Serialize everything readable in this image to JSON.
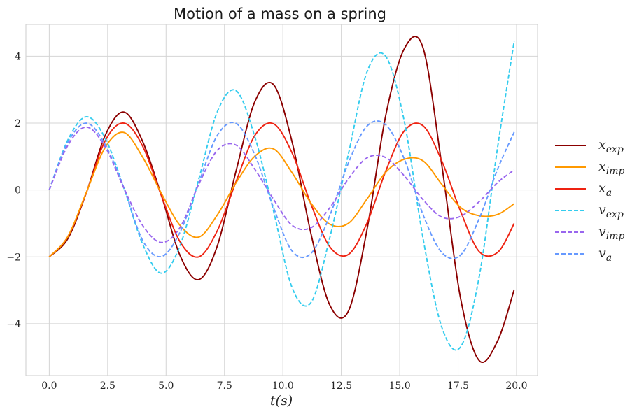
{
  "chart_data": {
    "type": "line",
    "title": "Motion of a mass on a spring",
    "xlabel": "t(s)",
    "ylabel": "",
    "xlim": [
      -1.0,
      20.9
    ],
    "ylim": [
      -5.55,
      4.95
    ],
    "grid": true,
    "legend_position": "right",
    "x_ticks": [
      0,
      2.5,
      5,
      7.5,
      10,
      12.5,
      15,
      17.5,
      20
    ],
    "x_tick_labels": [
      "0.0",
      "2.5",
      "5.0",
      "7.5",
      "10.0",
      "12.5",
      "15.0",
      "17.5",
      "20.0"
    ],
    "y_ticks": [
      4,
      2,
      0,
      -2,
      -4
    ],
    "y_tick_labels": [
      "4",
      "2",
      "0",
      "−2",
      "−4"
    ],
    "x": [
      0,
      0.8,
      1.6,
      2.4,
      3.2,
      4.0,
      4.8,
      5.6,
      6.4,
      7.2,
      8.0,
      8.8,
      9.6,
      10.4,
      11.2,
      12.0,
      12.8,
      13.6,
      14.4,
      15.2,
      16.0,
      16.8,
      17.6,
      18.4,
      19.2,
      19.9
    ],
    "series": [
      {
        "name": "x_exp",
        "label_main": "x",
        "label_sub": "exp",
        "color": "#8b0000",
        "dash": "solid",
        "values": [
          -2.0,
          -1.45,
          -0.06,
          1.64,
          2.33,
          1.45,
          -0.16,
          -1.96,
          -2.68,
          -1.66,
          0.58,
          2.64,
          3.15,
          1.42,
          -1.3,
          -3.43,
          -3.63,
          -1.19,
          2.22,
          4.23,
          4.25,
          0.75,
          -3.22,
          -5.1,
          -4.5,
          -2.98
        ]
      },
      {
        "name": "x_imp",
        "label_main": "x",
        "label_sub": "imp",
        "color": "#ff9900",
        "dash": "solid",
        "values": [
          -2.0,
          -1.39,
          -0.05,
          1.28,
          1.72,
          0.98,
          -0.1,
          -1.06,
          -1.41,
          -0.74,
          0.22,
          1.01,
          1.23,
          0.51,
          -0.39,
          -1.02,
          -1.0,
          -0.27,
          0.53,
          0.92,
          0.87,
          0.17,
          -0.52,
          -0.77,
          -0.73,
          -0.41
        ]
      },
      {
        "name": "x_a",
        "label_main": "x",
        "label_sub": "a",
        "color": "#ee2211",
        "dash": "solid",
        "values": [
          -2.0,
          -1.39,
          -0.06,
          1.48,
          2.0,
          1.31,
          -0.17,
          -1.55,
          -2.0,
          -1.21,
          0.26,
          1.63,
          1.98,
          1.1,
          -0.42,
          -1.69,
          -1.93,
          -0.99,
          0.56,
          1.77,
          1.92,
          0.87,
          -0.63,
          -1.84,
          -1.86,
          -1.0
        ]
      },
      {
        "name": "v_exp",
        "label_main": "v",
        "label_sub": "exp",
        "color": "#33ccee",
        "dash": "dashed",
        "values": [
          0,
          1.5,
          2.19,
          1.54,
          0.05,
          -1.62,
          -2.49,
          -1.66,
          0.32,
          2.35,
          2.97,
          1.59,
          -0.63,
          -2.93,
          -3.37,
          -1.45,
          1.06,
          3.53,
          4.0,
          2.04,
          -1.45,
          -4.1,
          -4.7,
          -2.6,
          1.32,
          4.45
        ]
      },
      {
        "name": "v_imp",
        "label_main": "v",
        "label_sub": "imp",
        "color": "#9966ee",
        "dash": "dashed",
        "values": [
          0,
          1.34,
          1.88,
          1.28,
          0.05,
          -1.06,
          -1.57,
          -1.12,
          0.17,
          1.19,
          1.34,
          0.62,
          -0.28,
          -1.06,
          -1.13,
          -0.54,
          0.33,
          0.96,
          0.97,
          0.42,
          -0.29,
          -0.81,
          -0.79,
          -0.35,
          0.23,
          0.6
        ]
      },
      {
        "name": "v_a",
        "label_main": "v",
        "label_sub": "a",
        "color": "#6699ff",
        "dash": "dashed",
        "values": [
          0,
          1.43,
          2.0,
          1.35,
          0.05,
          -1.51,
          -1.99,
          -1.26,
          0.22,
          1.64,
          1.99,
          1.05,
          -0.53,
          -1.83,
          -1.9,
          -0.78,
          0.8,
          1.91,
          1.95,
          0.92,
          -0.74,
          -1.87,
          -1.95,
          -0.86,
          0.64,
          1.73
        ]
      }
    ]
  }
}
